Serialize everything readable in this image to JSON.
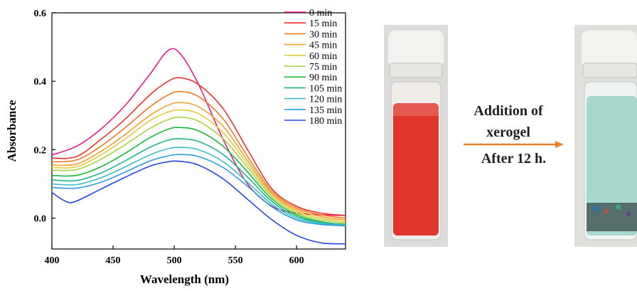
{
  "chart_data": {
    "type": "line",
    "xlabel": "Wavelength (nm)",
    "ylabel": "Absorbance",
    "xlim": [
      400,
      640
    ],
    "ylim": [
      -0.09,
      0.6
    ],
    "xticks": [
      "400",
      "450",
      "500",
      "550",
      "600"
    ],
    "yticks": [
      "0.0",
      "0.2",
      "0.4",
      "0.6"
    ],
    "legend_position": "top-right",
    "grid": false,
    "series": [
      {
        "name": "0 min",
        "color": "#e8198b",
        "x": [
          400,
          420,
          440,
          460,
          480,
          495,
          505,
          520,
          540,
          560,
          580,
          600,
          620,
          640
        ],
        "y": [
          0.185,
          0.21,
          0.26,
          0.33,
          0.42,
          0.49,
          0.48,
          0.39,
          0.23,
          0.1,
          0.035,
          0.015,
          0.01,
          0.008
        ]
      },
      {
        "name": "15 min",
        "color": "#e8312c",
        "x": [
          400,
          420,
          440,
          460,
          480,
          495,
          505,
          520,
          540,
          560,
          580,
          600,
          620,
          640
        ],
        "y": [
          0.175,
          0.18,
          0.23,
          0.29,
          0.36,
          0.4,
          0.41,
          0.39,
          0.32,
          0.2,
          0.085,
          0.035,
          0.015,
          0.008
        ]
      },
      {
        "name": "30 min",
        "color": "#f07a24",
        "x": [
          400,
          420,
          440,
          460,
          480,
          495,
          505,
          520,
          540,
          560,
          580,
          600,
          620,
          640
        ],
        "y": [
          0.165,
          0.17,
          0.21,
          0.265,
          0.325,
          0.36,
          0.37,
          0.355,
          0.29,
          0.18,
          0.078,
          0.03,
          0.01,
          0.0
        ]
      },
      {
        "name": "45 min",
        "color": "#f0a22e",
        "x": [
          400,
          420,
          440,
          460,
          480,
          495,
          505,
          520,
          540,
          560,
          580,
          600,
          620,
          640
        ],
        "y": [
          0.155,
          0.158,
          0.195,
          0.245,
          0.3,
          0.33,
          0.338,
          0.325,
          0.268,
          0.168,
          0.072,
          0.025,
          0.005,
          -0.005
        ]
      },
      {
        "name": "60 min",
        "color": "#e6c93a",
        "x": [
          400,
          420,
          440,
          460,
          480,
          495,
          505,
          520,
          540,
          560,
          580,
          600,
          620,
          640
        ],
        "y": [
          0.148,
          0.15,
          0.185,
          0.232,
          0.285,
          0.31,
          0.316,
          0.305,
          0.25,
          0.158,
          0.068,
          0.02,
          0.0,
          -0.01
        ]
      },
      {
        "name": "75 min",
        "color": "#a8d43c",
        "x": [
          400,
          420,
          440,
          460,
          480,
          495,
          505,
          520,
          540,
          560,
          580,
          600,
          620,
          640
        ],
        "y": [
          0.14,
          0.142,
          0.172,
          0.215,
          0.262,
          0.288,
          0.295,
          0.283,
          0.232,
          0.148,
          0.062,
          0.015,
          -0.005,
          -0.015
        ]
      },
      {
        "name": "90 min",
        "color": "#19b83a",
        "x": [
          400,
          420,
          440,
          460,
          480,
          495,
          505,
          520,
          540,
          560,
          580,
          600,
          620,
          640
        ],
        "y": [
          0.125,
          0.125,
          0.15,
          0.19,
          0.235,
          0.26,
          0.265,
          0.255,
          0.21,
          0.135,
          0.055,
          0.01,
          -0.01,
          -0.02
        ]
      },
      {
        "name": "105 min",
        "color": "#1fb48c",
        "x": [
          400,
          420,
          440,
          460,
          480,
          495,
          505,
          520,
          540,
          560,
          580,
          600,
          620,
          640
        ],
        "y": [
          0.112,
          0.11,
          0.132,
          0.168,
          0.207,
          0.228,
          0.232,
          0.224,
          0.186,
          0.12,
          0.048,
          0.005,
          -0.012,
          -0.018
        ]
      },
      {
        "name": "120 min",
        "color": "#3dbdc8",
        "x": [
          400,
          420,
          440,
          460,
          480,
          495,
          505,
          520,
          540,
          560,
          580,
          600,
          620,
          640
        ],
        "y": [
          0.1,
          0.098,
          0.118,
          0.15,
          0.185,
          0.203,
          0.207,
          0.2,
          0.165,
          0.105,
          0.04,
          0.0,
          -0.015,
          -0.02
        ]
      },
      {
        "name": "135 min",
        "color": "#2c9be0",
        "x": [
          400,
          420,
          440,
          460,
          480,
          495,
          505,
          520,
          540,
          560,
          580,
          600,
          620,
          640
        ],
        "y": [
          0.09,
          0.088,
          0.105,
          0.135,
          0.167,
          0.182,
          0.186,
          0.18,
          0.148,
          0.093,
          0.033,
          -0.005,
          -0.018,
          -0.022
        ]
      },
      {
        "name": "180 min",
        "color": "#2446e8",
        "x": [
          400,
          412,
          420,
          440,
          460,
          480,
          495,
          505,
          520,
          540,
          560,
          580,
          600,
          620,
          640
        ],
        "y": [
          0.075,
          0.048,
          0.05,
          0.085,
          0.12,
          0.152,
          0.165,
          0.166,
          0.155,
          0.115,
          0.055,
          -0.005,
          -0.05,
          -0.072,
          -0.075
        ]
      }
    ]
  },
  "annotation": {
    "line1": "Addition of",
    "line2": "xerogel",
    "line3": "After 12 h."
  },
  "colors": {
    "arrow": "#e8822e",
    "red_solution": "#e0352a",
    "treated_solution": "#a9d6cd",
    "cap": "#f2f2ee"
  }
}
